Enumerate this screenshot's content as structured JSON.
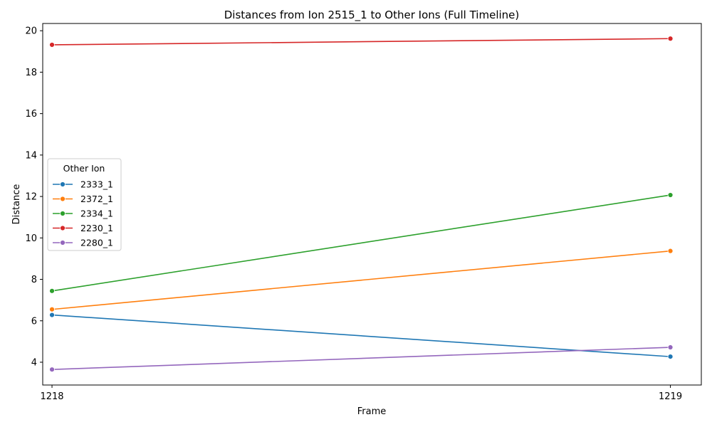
{
  "chart_data": {
    "type": "line",
    "title": "Distances from Ion 2515_1 to Other Ions (Full Timeline)",
    "xlabel": "Frame",
    "ylabel": "Distance",
    "x": [
      1218,
      1219
    ],
    "xlim": [
      1217.985,
      1219.05
    ],
    "ylim": [
      2.9,
      20.35
    ],
    "yticks": [
      4,
      6,
      8,
      10,
      12,
      14,
      16,
      18,
      20
    ],
    "legend": {
      "title": "Other Ion",
      "placement": "center-left"
    },
    "grid": false,
    "series": [
      {
        "name": "2333_1",
        "color": "#1f77b4",
        "values": [
          6.28,
          4.27
        ]
      },
      {
        "name": "2372_1",
        "color": "#ff7f0e",
        "values": [
          6.55,
          9.37
        ]
      },
      {
        "name": "2334_1",
        "color": "#2ca02c",
        "values": [
          7.44,
          12.07
        ]
      },
      {
        "name": "2230_1",
        "color": "#d62728",
        "values": [
          19.32,
          19.62
        ]
      },
      {
        "name": "2280_1",
        "color": "#9467bd",
        "values": [
          3.65,
          4.72
        ]
      }
    ]
  }
}
